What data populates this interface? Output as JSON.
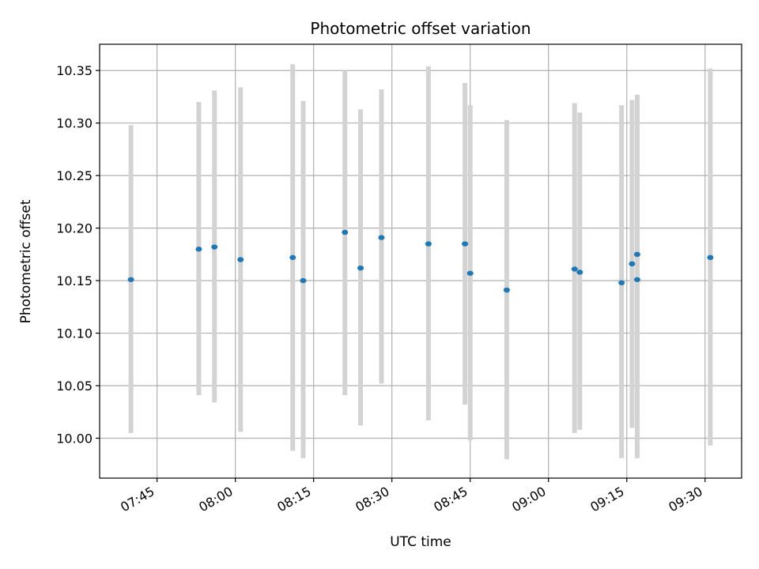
{
  "chart_data": {
    "type": "scatter",
    "title": "Photometric offset variation",
    "xlabel": "UTC time",
    "ylabel": "Photometric offset",
    "x_ticks": [
      "07:45",
      "08:00",
      "08:15",
      "08:30",
      "08:45",
      "09:00",
      "09:15",
      "09:30"
    ],
    "y_ticks": [
      "10.00",
      "10.05",
      "10.10",
      "10.15",
      "10.20",
      "10.25",
      "10.30",
      "10.35"
    ],
    "xlim": [
      "07:34",
      "09:37"
    ],
    "ylim": [
      9.962,
      10.375
    ],
    "grid": true,
    "colors": {
      "point": "#1f77b4",
      "errorbar": "#d3d3d3",
      "grid": "#b0b0b0"
    },
    "points": [
      {
        "time": "07:40",
        "y": 10.151,
        "low": 10.005,
        "high": 10.298
      },
      {
        "time": "07:53",
        "y": 10.18,
        "low": 10.041,
        "high": 10.32
      },
      {
        "time": "07:56",
        "y": 10.182,
        "low": 10.034,
        "high": 10.331
      },
      {
        "time": "08:01",
        "y": 10.17,
        "low": 10.006,
        "high": 10.334
      },
      {
        "time": "08:11",
        "y": 10.172,
        "low": 9.988,
        "high": 10.356
      },
      {
        "time": "08:13",
        "y": 10.15,
        "low": 9.981,
        "high": 10.321
      },
      {
        "time": "08:21",
        "y": 10.196,
        "low": 10.041,
        "high": 10.35
      },
      {
        "time": "08:24",
        "y": 10.162,
        "low": 10.012,
        "high": 10.313
      },
      {
        "time": "08:28",
        "y": 10.191,
        "low": 10.052,
        "high": 10.332
      },
      {
        "time": "08:37",
        "y": 10.185,
        "low": 10.017,
        "high": 10.354
      },
      {
        "time": "08:44",
        "y": 10.185,
        "low": 10.032,
        "high": 10.338
      },
      {
        "time": "08:45",
        "y": 10.157,
        "low": 9.998,
        "high": 10.317
      },
      {
        "time": "08:52",
        "y": 10.141,
        "low": 9.98,
        "high": 10.303
      },
      {
        "time": "09:05",
        "y": 10.161,
        "low": 10.005,
        "high": 10.319
      },
      {
        "time": "09:06",
        "y": 10.158,
        "low": 10.008,
        "high": 10.31
      },
      {
        "time": "09:14",
        "y": 10.148,
        "low": 9.981,
        "high": 10.317
      },
      {
        "time": "09:16",
        "y": 10.166,
        "low": 10.01,
        "high": 10.322
      },
      {
        "time": "09:17",
        "y": 10.151,
        "low": 9.981,
        "high": 10.321
      },
      {
        "time": "09:17",
        "y": 10.175,
        "low": 10.024,
        "high": 10.327
      },
      {
        "time": "09:31",
        "y": 10.172,
        "low": 9.993,
        "high": 10.352
      }
    ]
  }
}
